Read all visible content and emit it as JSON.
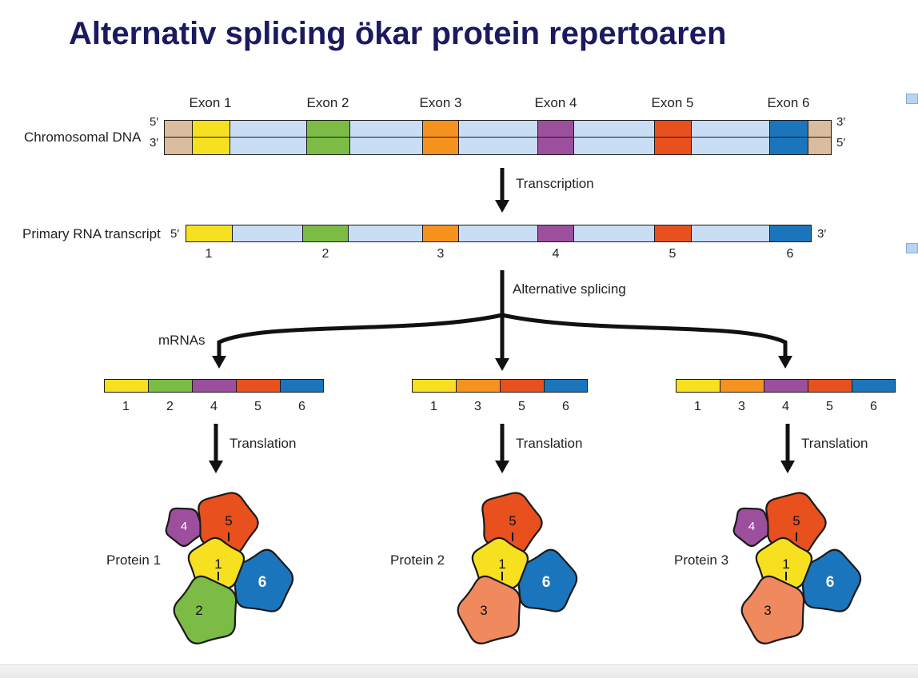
{
  "title": "Alternativ splicing ökar protein repertoaren",
  "colors": {
    "exons": {
      "1": "#F6E020",
      "2": "#7CBB45",
      "3": "#F6921E",
      "4": "#9C4F9C",
      "5": "#E8501E",
      "6": "#1B75BC"
    },
    "subunits": {
      "1": "#F6E020",
      "2": "#7CBB45",
      "3": "#F0895E",
      "4": "#9C4F9C",
      "5": "#E8501E",
      "6": "#1B75BC"
    },
    "intron": "#C9DDF4",
    "dna_end": "#D9BD9E",
    "outline": "#1a1a1a"
  },
  "dna": {
    "label": "Chromosomal DNA",
    "left_top": "5′",
    "left_bottom": "3′",
    "right_top": "3′",
    "right_bottom": "5′",
    "exon_labels": [
      "Exon 1",
      "Exon 2",
      "Exon 3",
      "Exon 4",
      "Exon 5",
      "Exon 6"
    ]
  },
  "transcription": {
    "label": "Transcription"
  },
  "rna": {
    "label": "Primary RNA transcript",
    "five_prime": "5′",
    "three_prime": "3′",
    "numbers": [
      "1",
      "2",
      "3",
      "4",
      "5",
      "6"
    ]
  },
  "splicing": {
    "label": "Alternative splicing"
  },
  "mrnas": {
    "label": "mRNAs",
    "variants": [
      {
        "exons": [
          1,
          2,
          4,
          5,
          6
        ]
      },
      {
        "exons": [
          1,
          3,
          5,
          6
        ]
      },
      {
        "exons": [
          1,
          3,
          4,
          5,
          6
        ]
      }
    ]
  },
  "translation": {
    "label": "Translation"
  },
  "proteins": [
    {
      "label": "Protein 1",
      "subunits": [
        4,
        5,
        1,
        2,
        6
      ]
    },
    {
      "label": "Protein 2",
      "subunits": [
        5,
        1,
        3,
        6
      ]
    },
    {
      "label": "Protein 3",
      "subunits": [
        4,
        5,
        1,
        3,
        6
      ]
    }
  ]
}
